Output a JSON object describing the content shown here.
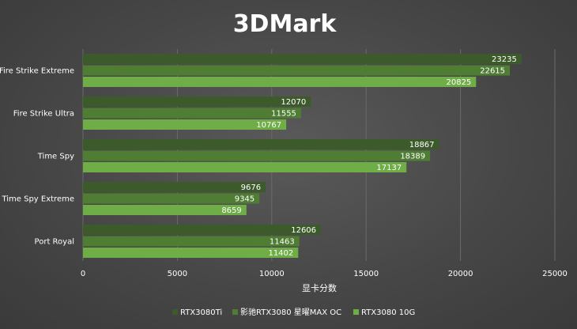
{
  "chart_data": {
    "type": "bar",
    "orientation": "horizontal",
    "title": "3DMark",
    "xlabel": "显卡分数",
    "ylabel": "",
    "xlim": [
      0,
      25000
    ],
    "xticks": [
      0,
      5000,
      10000,
      15000,
      20000,
      25000
    ],
    "grid": true,
    "legend_position": "bottom",
    "categories": [
      "Fire Strike Extreme",
      "Fire Strike Ultra",
      "Time Spy",
      "Time Spy Extreme",
      "Port Royal"
    ],
    "series": [
      {
        "name": "RTX3080Ti",
        "color": "#3d5b2a",
        "values": [
          23235,
          12070,
          18867,
          9676,
          12606
        ]
      },
      {
        "name": "影驰RTX3080 星曜MAX OC",
        "color": "#4f7d34",
        "values": [
          22615,
          11555,
          18389,
          9345,
          11463
        ]
      },
      {
        "name": "RTX3080 10G",
        "color": "#6fae46",
        "values": [
          20825,
          10767,
          17137,
          8659,
          11402
        ]
      }
    ]
  }
}
